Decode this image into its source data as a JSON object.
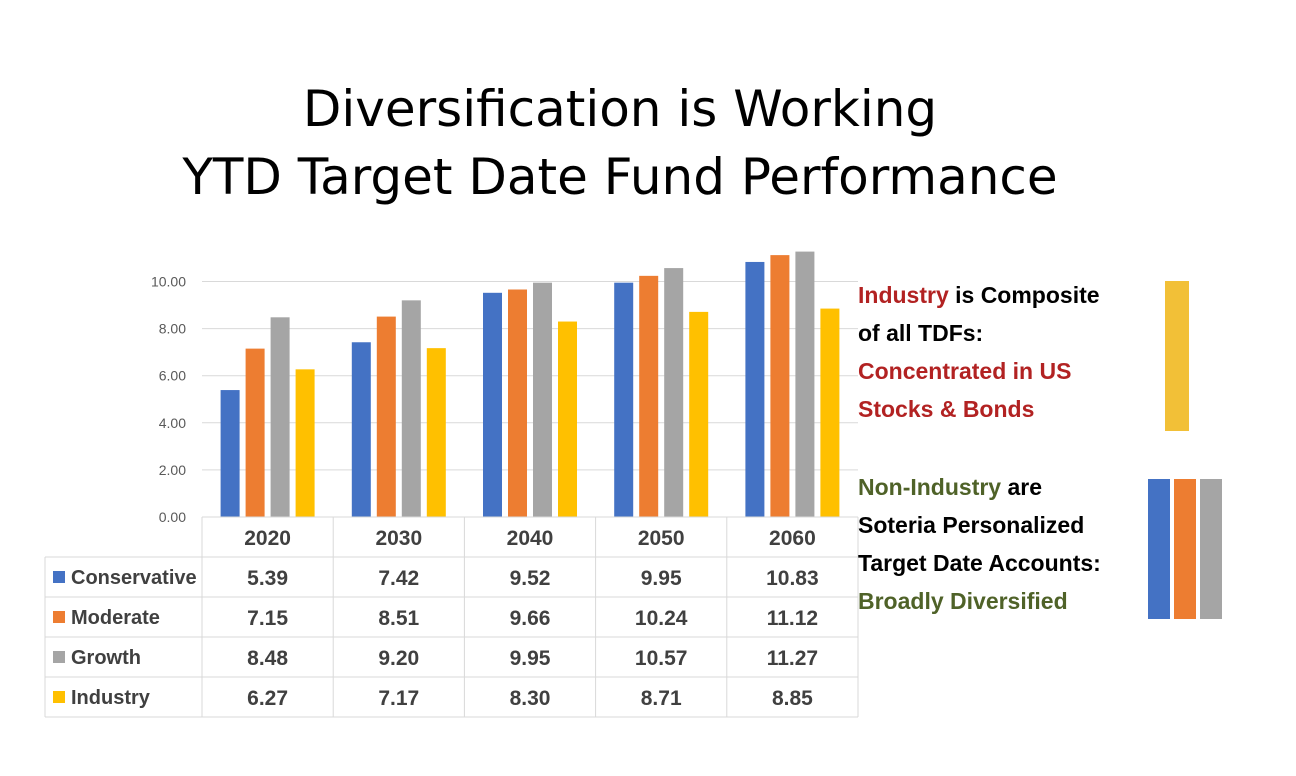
{
  "title": {
    "line1": "Diversification is Working",
    "line2": "YTD Target Date Fund Performance"
  },
  "chart_data": {
    "type": "bar",
    "categories": [
      "2020",
      "2030",
      "2040",
      "2050",
      "2060"
    ],
    "y_ticks": [
      "0.00",
      "2.00",
      "4.00",
      "6.00",
      "8.00",
      "10.00"
    ],
    "ylim": [
      0,
      12
    ],
    "grid": true,
    "legend": "data-table-below",
    "series": [
      {
        "name": "Conservative",
        "color": "#4472c4",
        "values": [
          5.39,
          7.42,
          9.52,
          9.95,
          10.83
        ],
        "labels": [
          "5.39",
          "7.42",
          "9.52",
          "9.95",
          "10.83"
        ]
      },
      {
        "name": "Moderate",
        "color": "#ed7d31",
        "values": [
          7.15,
          8.51,
          9.66,
          10.24,
          11.12
        ],
        "labels": [
          "7.15",
          "8.51",
          "9.66",
          "10.24",
          "11.12"
        ]
      },
      {
        "name": "Growth",
        "color": "#a5a5a5",
        "values": [
          8.48,
          9.2,
          9.95,
          10.57,
          11.27
        ],
        "labels": [
          "8.48",
          "9.20",
          "9.95",
          "10.57",
          "11.27"
        ]
      },
      {
        "name": "Industry",
        "color": "#ffc000",
        "values": [
          6.27,
          7.17,
          8.3,
          8.71,
          8.85
        ],
        "labels": [
          "6.27",
          "7.17",
          "8.30",
          "8.71",
          "8.85"
        ]
      }
    ]
  },
  "notes": {
    "industry": {
      "l1a": "Industry",
      "l1b": " is Composite",
      "l2": "of all TDFs:",
      "l3": "Concentrated in US",
      "l4": "Stocks & Bonds"
    },
    "non_industry": {
      "l1a": "Non-Industry",
      "l1b": " are",
      "l2": "Soteria Personalized",
      "l3": "Target Date Accounts:",
      "l4": "Broadly Diversified"
    }
  },
  "colors": {
    "industry_red": "#b22222",
    "non_industry_green": "#4f6228"
  }
}
